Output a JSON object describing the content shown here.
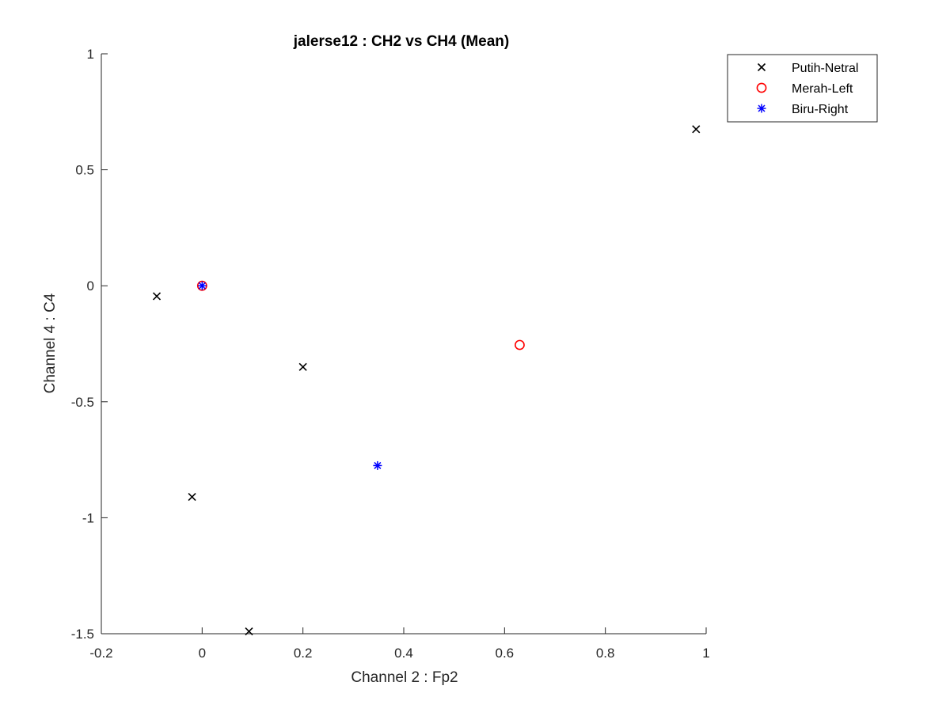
{
  "chart_data": {
    "type": "scatter",
    "title": "jalerse12 : CH2 vs CH4 (Mean)",
    "xlabel": "Channel 2 : Fp2",
    "ylabel": "Channel 4 : C4",
    "xlim": [
      -0.2,
      1
    ],
    "ylim": [
      -1.5,
      1
    ],
    "xticks": [
      -0.2,
      0,
      0.2,
      0.4,
      0.6,
      0.8,
      1
    ],
    "yticks": [
      -1.5,
      -1,
      -0.5,
      0,
      0.5,
      1
    ],
    "xtick_labels": [
      "-0.2",
      "0",
      "0.2",
      "0.4",
      "0.6",
      "0.8",
      "1"
    ],
    "ytick_labels": [
      "-1.5",
      "-1",
      "-0.5",
      "0",
      "0.5",
      "1"
    ],
    "grid": false,
    "legend_position": "top-right",
    "series": [
      {
        "name": "Putih-Netral",
        "marker": "x",
        "color": "#000000",
        "points": [
          {
            "x": -0.09,
            "y": -0.045
          },
          {
            "x": -0.02,
            "y": -0.91
          },
          {
            "x": 0.093,
            "y": -1.49
          },
          {
            "x": 0.2,
            "y": -0.35
          },
          {
            "x": 0.98,
            "y": 0.675
          }
        ]
      },
      {
        "name": "Merah-Left",
        "marker": "circle",
        "color": "#ff0000",
        "points": [
          {
            "x": 0.0,
            "y": 0.0
          },
          {
            "x": 0.63,
            "y": -0.255
          }
        ]
      },
      {
        "name": "Biru-Right",
        "marker": "asterisk",
        "color": "#0000ff",
        "points": [
          {
            "x": 0.0,
            "y": 0.0
          },
          {
            "x": 0.348,
            "y": -0.775
          }
        ]
      }
    ]
  }
}
